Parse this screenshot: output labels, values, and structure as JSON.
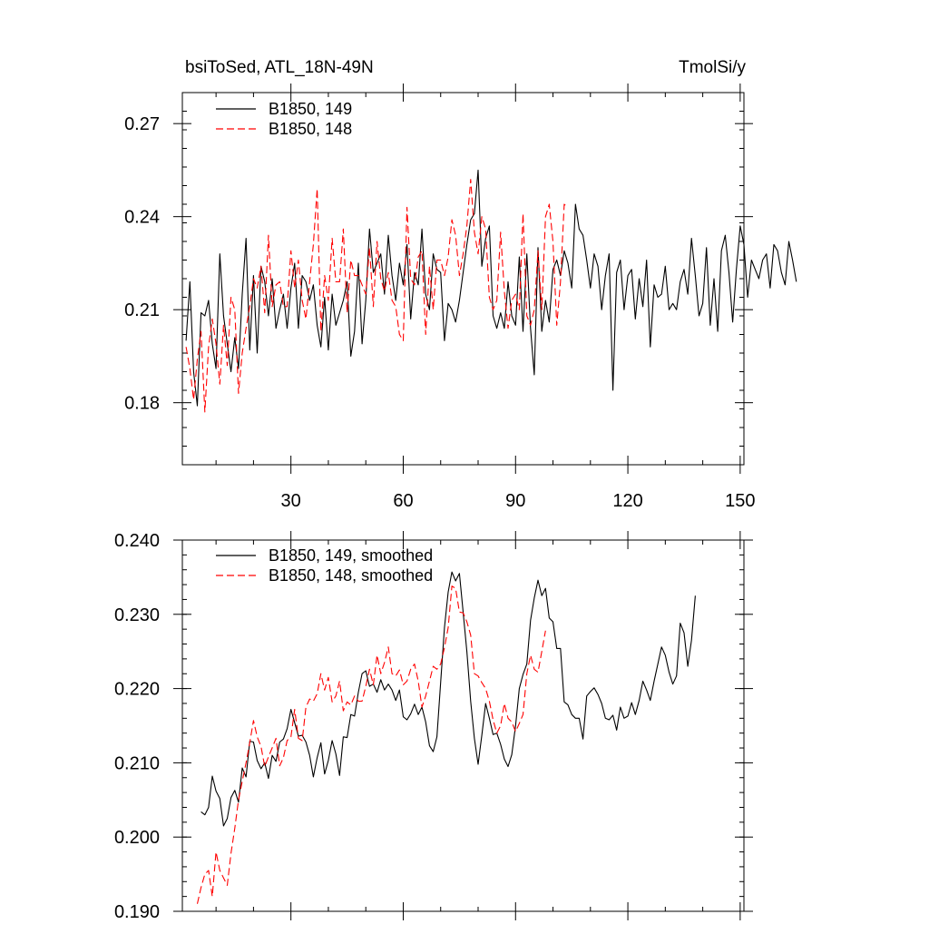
{
  "chart_data": [
    {
      "type": "line",
      "title_left": "bsiToSed, ATL_18N-49N",
      "title_right": "TmolSi/y",
      "xlim": [
        1,
        151
      ],
      "ylim": [
        0.16,
        0.28
      ],
      "x_ticks": [
        30,
        60,
        90,
        120,
        150
      ],
      "y_ticks": [
        0.18,
        0.21,
        0.24,
        0.27
      ],
      "y_tick_labels": [
        "0.18",
        "0.21",
        "0.24",
        "0.27"
      ],
      "legend_position": "top-left",
      "series": [
        {
          "name": "B1850, 149",
          "color": "#000000",
          "dash": "solid",
          "x_start": 2,
          "values": [
            0.2,
            0.219,
            0.19,
            0.179,
            0.209,
            0.208,
            0.213,
            0.199,
            0.191,
            0.228,
            0.208,
            0.199,
            0.19,
            0.201,
            0.191,
            0.215,
            0.233,
            0.197,
            0.221,
            0.196,
            0.224,
            0.219,
            0.208,
            0.22,
            0.204,
            0.21,
            0.215,
            0.204,
            0.217,
            0.225,
            0.204,
            0.221,
            0.219,
            0.213,
            0.218,
            0.205,
            0.198,
            0.214,
            0.197,
            0.215,
            0.205,
            0.209,
            0.213,
            0.219,
            0.195,
            0.203,
            0.225,
            0.199,
            0.213,
            0.236,
            0.222,
            0.225,
            0.228,
            0.215,
            0.234,
            0.221,
            0.213,
            0.225,
            0.218,
            0.231,
            0.207,
            0.222,
            0.218,
            0.236,
            0.215,
            0.21,
            0.228,
            0.223,
            0.222,
            0.2,
            0.212,
            0.21,
            0.206,
            0.213,
            0.222,
            0.231,
            0.239,
            0.241,
            0.255,
            0.224,
            0.233,
            0.237,
            0.208,
            0.204,
            0.209,
            0.204,
            0.219,
            0.208,
            0.205,
            0.227,
            0.203,
            0.228,
            0.204,
            0.189,
            0.23,
            0.203,
            0.213,
            0.206,
            0.223,
            0.226,
            0.221,
            0.229,
            0.225,
            0.217,
            0.244,
            0.236,
            0.234,
            0.226,
            0.217,
            0.228,
            0.224,
            0.21,
            0.221,
            0.228,
            0.184,
            0.222,
            0.226,
            0.21,
            0.221,
            0.223,
            0.207,
            0.22,
            0.211,
            0.226,
            0.198,
            0.218,
            0.214,
            0.215,
            0.224,
            0.21,
            0.212,
            0.21,
            0.219,
            0.223,
            0.215,
            0.233,
            0.221,
            0.208,
            0.212,
            0.23,
            0.205,
            0.22,
            0.203,
            0.229,
            0.234,
            0.222,
            0.206,
            0.223,
            0.237,
            0.231,
            0.214,
            0.226,
            0.223,
            0.22,
            0.226,
            0.228,
            0.217,
            0.231,
            0.229,
            0.222,
            0.218,
            0.232,
            0.226,
            0.219
          ]
        },
        {
          "name": "B1850, 148",
          "color": "#ff0000",
          "dash": "dashed",
          "x_start": 2,
          "values": [
            0.198,
            0.191,
            0.181,
            0.194,
            0.203,
            0.177,
            0.198,
            0.207,
            0.199,
            0.186,
            0.205,
            0.192,
            0.214,
            0.21,
            0.183,
            0.196,
            0.204,
            0.211,
            0.22,
            0.217,
            0.224,
            0.209,
            0.234,
            0.211,
            0.218,
            0.219,
            0.211,
            0.211,
            0.229,
            0.217,
            0.226,
            0.213,
            0.207,
            0.219,
            0.231,
            0.249,
            0.203,
            0.221,
            0.213,
            0.233,
            0.219,
            0.219,
            0.236,
            0.209,
            0.226,
            0.221,
            0.221,
            0.218,
            0.215,
            0.23,
            0.211,
            0.232,
            0.22,
            0.216,
            0.222,
            0.213,
            0.211,
            0.202,
            0.2,
            0.243,
            0.22,
            0.218,
            0.227,
            0.229,
            0.202,
            0.224,
            0.21,
            0.226,
            0.226,
            0.221,
            0.227,
            0.239,
            0.234,
            0.221,
            0.228,
            0.237,
            0.252,
            0.235,
            0.228,
            0.24,
            0.236,
            0.214,
            0.21,
            0.213,
            0.235,
            0.216,
            0.204,
            0.213,
            0.215,
            0.21,
            0.241,
            0.208,
            0.205,
            0.21,
            0.229,
            0.21,
            0.24,
            0.244,
            0.232,
            0.205,
            0.219,
            0.244,
            0.243
          ]
        }
      ]
    },
    {
      "type": "line",
      "xlim": [
        1,
        151
      ],
      "ylim": [
        0.19,
        0.24
      ],
      "x_ticks": [
        30,
        60,
        90,
        120,
        150
      ],
      "y_ticks": [
        0.19,
        0.2,
        0.21,
        0.22,
        0.23,
        0.24
      ],
      "y_tick_labels": [
        "0.190",
        "0.200",
        "0.210",
        "0.220",
        "0.230",
        "0.240"
      ],
      "legend_position": "top-left",
      "series": [
        {
          "name": "B1850, 149, smoothed",
          "color": "#000000",
          "dash": "solid",
          "x_start": 6,
          "values": [
            0.2034,
            0.203,
            0.204,
            0.2082,
            0.2062,
            0.2052,
            0.2015,
            0.2025,
            0.2053,
            0.2063,
            0.2047,
            0.2093,
            0.2081,
            0.2129,
            0.2128,
            0.2103,
            0.2092,
            0.21,
            0.2079,
            0.211,
            0.2102,
            0.2128,
            0.2132,
            0.2146,
            0.2172,
            0.2154,
            0.2136,
            0.2137,
            0.2128,
            0.211,
            0.2081,
            0.2107,
            0.2127,
            0.2085,
            0.2103,
            0.213,
            0.2112,
            0.2083,
            0.2135,
            0.2134,
            0.2165,
            0.2163,
            0.2195,
            0.222,
            0.2224,
            0.2203,
            0.2206,
            0.2195,
            0.2212,
            0.2198,
            0.2206,
            0.2198,
            0.2184,
            0.2198,
            0.2162,
            0.2158,
            0.2166,
            0.2179,
            0.2165,
            0.2175,
            0.2155,
            0.2123,
            0.2115,
            0.2135,
            0.2208,
            0.2282,
            0.233,
            0.2357,
            0.2345,
            0.2355,
            0.2303,
            0.225,
            0.2183,
            0.2133,
            0.2098,
            0.2137,
            0.218,
            0.216,
            0.2138,
            0.214,
            0.2125,
            0.2105,
            0.2095,
            0.2111,
            0.215,
            0.22,
            0.2219,
            0.2233,
            0.2292,
            0.2322,
            0.2346,
            0.2325,
            0.2335,
            0.2295,
            0.229,
            0.2254,
            0.2254,
            0.2182,
            0.2178,
            0.2165,
            0.216,
            0.216,
            0.2132,
            0.219,
            0.2196,
            0.2201,
            0.2192,
            0.218,
            0.216,
            0.2158,
            0.2164,
            0.2144,
            0.2175,
            0.216,
            0.2163,
            0.2181,
            0.2165,
            0.2184,
            0.221,
            0.2198,
            0.2184,
            0.221,
            0.2233,
            0.2256,
            0.2245,
            0.2222,
            0.2206,
            0.2217,
            0.2288,
            0.2275,
            0.223,
            0.2265,
            0.2325
          ]
        },
        {
          "name": "B1850, 148, smoothed",
          "color": "#ff0000",
          "dash": "dashed",
          "x_start": 5,
          "values": [
            0.191,
            0.1932,
            0.195,
            0.1955,
            0.192,
            0.198,
            0.1955,
            0.1945,
            0.1935,
            0.1978,
            0.2012,
            0.205,
            0.2075,
            0.21,
            0.2127,
            0.2157,
            0.2135,
            0.2122,
            0.2095,
            0.2108,
            0.212,
            0.2133,
            0.2096,
            0.2107,
            0.213,
            0.2135,
            0.2172,
            0.2133,
            0.213,
            0.2175,
            0.2186,
            0.2183,
            0.2193,
            0.222,
            0.2198,
            0.2215,
            0.2182,
            0.219,
            0.221,
            0.217,
            0.2182,
            0.2178,
            0.219,
            0.2183,
            0.2183,
            0.2203,
            0.2226,
            0.2205,
            0.2245,
            0.222,
            0.2235,
            0.2256,
            0.222,
            0.2217,
            0.2225,
            0.2205,
            0.221,
            0.2226,
            0.2233,
            0.221,
            0.2175,
            0.219,
            0.221,
            0.223,
            0.2226,
            0.2233,
            0.2255,
            0.2282,
            0.2338,
            0.2335,
            0.2303,
            0.2302,
            0.229,
            0.2272,
            0.222,
            0.2217,
            0.2208,
            0.22,
            0.2183,
            0.2158,
            0.214,
            0.215,
            0.218,
            0.216,
            0.2155,
            0.2142,
            0.2153,
            0.2165,
            0.222,
            0.2245,
            0.2226,
            0.2222,
            0.225,
            0.2278
          ]
        }
      ]
    }
  ]
}
